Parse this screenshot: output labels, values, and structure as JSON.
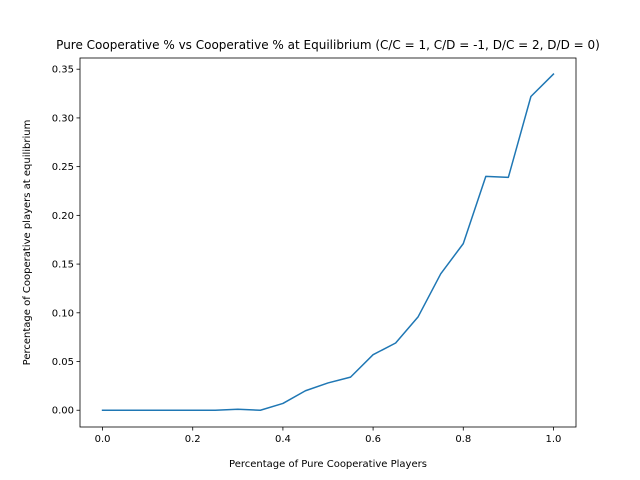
{
  "chart_data": {
    "type": "line",
    "title": "Pure Cooperative % vs Cooperative % at Equilibrium (C/C = 1, C/D = -1, D/C = 2, D/D = 0)",
    "xlabel": "Percentage of Pure Cooperative Players",
    "ylabel": "Percentage of Cooperative players at equilibrium",
    "xlim": [
      -0.05,
      1.05
    ],
    "ylim": [
      -0.0172,
      0.3615
    ],
    "xticks": [
      0.0,
      0.2,
      0.4,
      0.6,
      0.8,
      1.0
    ],
    "xtick_labels": [
      "0.0",
      "0.2",
      "0.4",
      "0.6",
      "0.8",
      "1.0"
    ],
    "yticks": [
      0.0,
      0.05,
      0.1,
      0.15,
      0.2,
      0.25,
      0.3,
      0.35
    ],
    "ytick_labels": [
      "0.00",
      "0.05",
      "0.10",
      "0.15",
      "0.20",
      "0.25",
      "0.30",
      "0.35"
    ],
    "grid": false,
    "color": "#1f77b4",
    "series": [
      {
        "x": [
          0.0,
          0.05,
          0.1,
          0.15,
          0.2,
          0.25,
          0.3,
          0.35,
          0.4,
          0.45,
          0.5,
          0.55,
          0.6,
          0.65,
          0.7,
          0.75,
          0.8,
          0.85,
          0.9,
          0.95,
          1.0
        ],
        "values": [
          0.0,
          0.0,
          0.0,
          0.0,
          0.0,
          0.0,
          0.001,
          0.0,
          0.007,
          0.02,
          0.028,
          0.034,
          0.057,
          0.069,
          0.096,
          0.14,
          0.171,
          0.24,
          0.239,
          0.322,
          0.345
        ]
      }
    ]
  }
}
